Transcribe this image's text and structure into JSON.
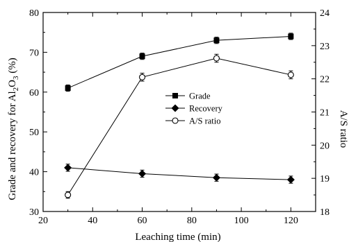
{
  "chart_data": {
    "type": "line",
    "xlabel": "Leaching time (min)",
    "ylabel_left": "Grade and recovery for Al2O3 (%)",
    "ylabel_left_parts": {
      "prefix": "Grade and recovery for Al",
      "sub1": "2",
      "mid": "O",
      "sub2": "3",
      "suffix": " (%)"
    },
    "ylabel_right": "A/S ratio",
    "xlim": [
      20,
      130
    ],
    "ylim_left": [
      30,
      80
    ],
    "ylim_right": [
      18,
      24
    ],
    "x_ticks": [
      20,
      40,
      60,
      80,
      100,
      120
    ],
    "y_left_ticks": [
      30,
      40,
      50,
      60,
      70,
      80
    ],
    "y_right_ticks": [
      18,
      19,
      20,
      21,
      22,
      23,
      24
    ],
    "legend_position": "center-right",
    "grid": false,
    "x": [
      30,
      60,
      90,
      120
    ],
    "series": [
      {
        "name": "Grade",
        "axis": "left",
        "marker": "square-filled",
        "values": [
          61,
          69,
          73,
          74
        ],
        "error": [
          0.8,
          0.8,
          0.8,
          0.8
        ]
      },
      {
        "name": "Recovery",
        "axis": "left",
        "marker": "diamond-filled",
        "values": [
          41,
          39.5,
          38.5,
          38
        ],
        "error": [
          0.9,
          0.9,
          0.9,
          0.9
        ]
      },
      {
        "name": "A/S ratio",
        "axis": "right",
        "marker": "circle-open",
        "values": [
          18.5,
          22.05,
          22.62,
          22.12
        ],
        "error": [
          0.1,
          0.12,
          0.12,
          0.12
        ]
      }
    ]
  }
}
